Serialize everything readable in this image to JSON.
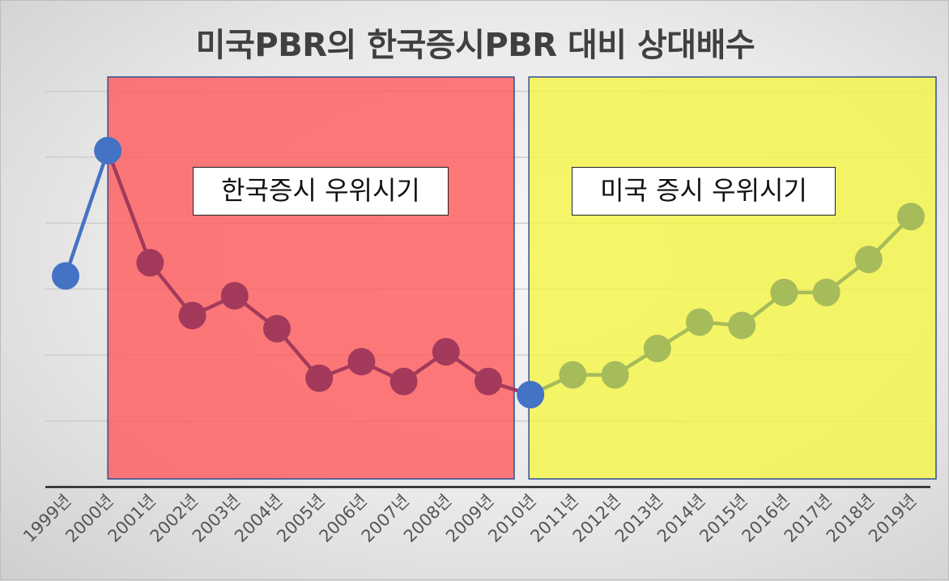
{
  "title": "미국PBR의 한국증시PBR 대비 상대배수",
  "regions": [
    {
      "label": "한국증시 우위시기",
      "from": "2000년",
      "to": "2009년",
      "color": "#ff5a5a"
    },
    {
      "label": "미국 증시 우위시기",
      "from": "2010년",
      "to": "2019년",
      "color": "#f5f545"
    }
  ],
  "colors": {
    "line_default": "#4472c4",
    "line_in_red": "#a33a5c",
    "line_in_yellow": "#a6bb5a",
    "grid": "#c8c8c8",
    "axis": "#222222"
  },
  "chart_data": {
    "type": "line",
    "title": "미국PBR의 한국증시PBR 대비 상대배수",
    "categories": [
      "1999년",
      "2000년",
      "2001년",
      "2002년",
      "2003년",
      "2004년",
      "2005년",
      "2006년",
      "2007년",
      "2008년",
      "2009년",
      "2010년",
      "2011년",
      "2012년",
      "2013년",
      "2014년",
      "2015년",
      "2016년",
      "2017년",
      "2018년",
      "2019년"
    ],
    "series": [
      {
        "values": [
          3.2,
          5.1,
          3.4,
          2.6,
          2.9,
          2.4,
          1.65,
          1.9,
          1.6,
          2.05,
          1.6,
          1.4,
          1.7,
          1.7,
          2.1,
          2.5,
          2.45,
          2.95,
          2.95,
          3.45,
          4.1
        ]
      }
    ],
    "ylim": [
      0,
      6
    ],
    "grid": true,
    "y_tick_labels_shown": false
  }
}
